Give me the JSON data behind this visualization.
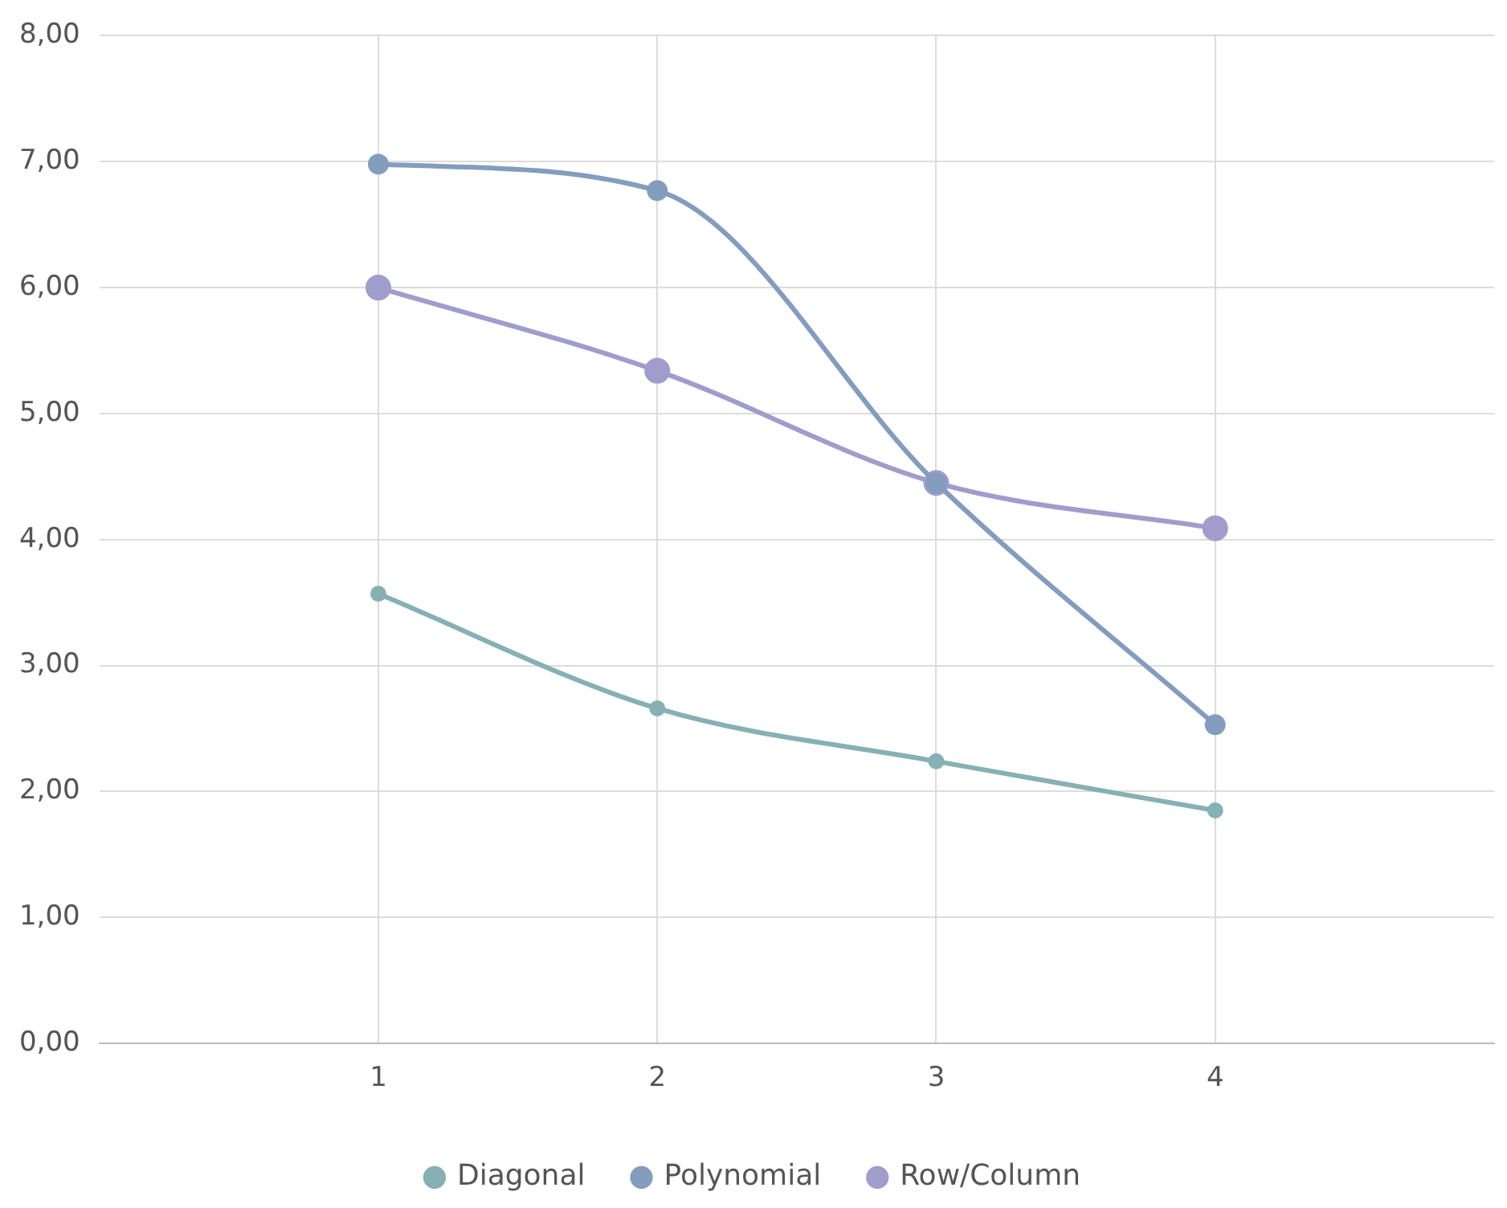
{
  "chart_data": {
    "type": "line",
    "x": [
      1,
      2,
      3,
      4
    ],
    "xlim": [
      0,
      5
    ],
    "xticks": [
      1,
      2,
      3,
      4
    ],
    "ylim": [
      0,
      8
    ],
    "yticks": [
      {
        "value": 0,
        "label": "0,00"
      },
      {
        "value": 1,
        "label": "1,00"
      },
      {
        "value": 2,
        "label": "2,00"
      },
      {
        "value": 3,
        "label": "3,00"
      },
      {
        "value": 4,
        "label": "4,00"
      },
      {
        "value": 5,
        "label": "5,00"
      },
      {
        "value": 6,
        "label": "6,00"
      },
      {
        "value": 7,
        "label": "7,00"
      },
      {
        "value": 8,
        "label": "8,00"
      }
    ],
    "series": [
      {
        "name": "Diagonal",
        "color": "#86b0b4",
        "values": [
          3.57,
          2.66,
          2.24,
          1.85
        ]
      },
      {
        "name": "Polynomial",
        "color": "#849cbd",
        "values": [
          6.98,
          6.77,
          4.45,
          2.53
        ]
      },
      {
        "name": "Row/Column",
        "color": "#a09ccc",
        "values": [
          6.0,
          5.34,
          4.45,
          4.09
        ]
      }
    ],
    "grid": true,
    "legend": "bottom",
    "marker": "circle",
    "line_style": "solid"
  }
}
